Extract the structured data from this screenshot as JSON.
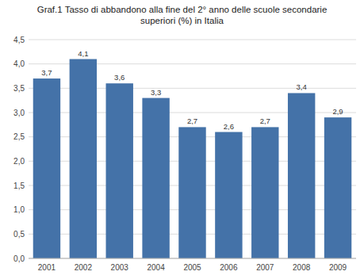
{
  "chart_data": {
    "type": "bar",
    "title": "Graf.1 Tasso di abbandono alla fine del 2° anno delle scuole secondarie\nsuperiori (%) in Italia",
    "categories": [
      "2001",
      "2002",
      "2003",
      "2004",
      "2005",
      "2006",
      "2007",
      "2008",
      "2009"
    ],
    "values": [
      3.7,
      4.1,
      3.6,
      3.3,
      2.7,
      2.6,
      2.7,
      3.4,
      2.9
    ],
    "value_labels": [
      "3,7",
      "4,1",
      "3,6",
      "3,3",
      "2,7",
      "2,6",
      "2,7",
      "3,4",
      "2,9"
    ],
    "data_labels": true,
    "color": "#4472a8",
    "ylim": [
      0.0,
      4.5
    ],
    "yticks": [
      {
        "value": 0.0,
        "label": "0,0"
      },
      {
        "value": 0.5,
        "label": "0,5"
      },
      {
        "value": 1.0,
        "label": "1,0"
      },
      {
        "value": 1.5,
        "label": "1,5"
      },
      {
        "value": 2.0,
        "label": "2,0"
      },
      {
        "value": 2.5,
        "label": "2,5"
      },
      {
        "value": 3.0,
        "label": "3,0"
      },
      {
        "value": 3.5,
        "label": "3,5"
      },
      {
        "value": 4.0,
        "label": "4,0"
      },
      {
        "value": 4.5,
        "label": "4,5"
      }
    ],
    "grid": true
  }
}
